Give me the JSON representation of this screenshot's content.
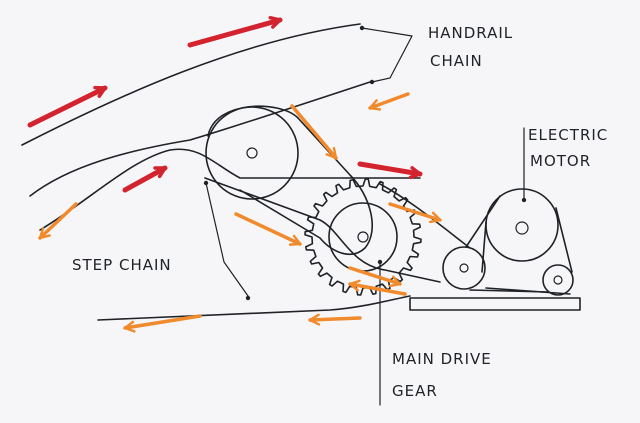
{
  "labels": {
    "handrail_line1": "HANDRAIL",
    "handrail_line2": "CHAIN",
    "motor_line1": "ELECTRIC",
    "motor_line2": "MOTOR",
    "step_chain": "STEP CHAIN",
    "gear_line1": "MAIN DRIVE",
    "gear_line2": "GEAR"
  },
  "colors": {
    "ink": "#1f2226",
    "red_arrow": "#d3232e",
    "orange_arrow": "#f08a2c"
  }
}
